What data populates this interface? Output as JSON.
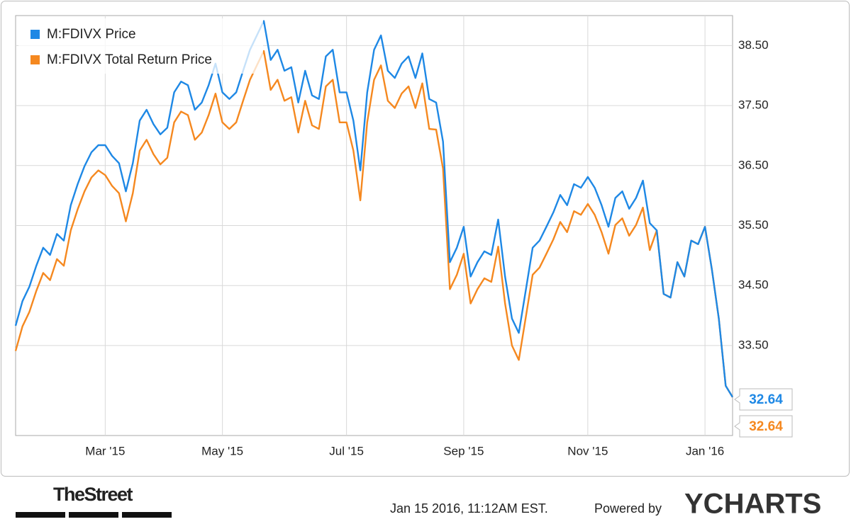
{
  "chart_data": {
    "type": "line",
    "categories": [
      null,
      null,
      null,
      null,
      null,
      null,
      null,
      null,
      null,
      null,
      null,
      null,
      null,
      "Mar '15",
      null,
      null,
      null,
      null,
      null,
      null,
      null,
      null,
      null,
      null,
      null,
      null,
      null,
      null,
      null,
      null,
      "May '15",
      null,
      null,
      null,
      null,
      null,
      null,
      null,
      null,
      null,
      null,
      null,
      null,
      null,
      null,
      null,
      null,
      null,
      "Jul '15",
      null,
      null,
      null,
      null,
      null,
      null,
      null,
      null,
      null,
      null,
      null,
      null,
      null,
      null,
      null,
      null,
      "Sep '15",
      null,
      null,
      null,
      null,
      null,
      null,
      null,
      null,
      null,
      null,
      null,
      null,
      null,
      null,
      null,
      null,
      null,
      "Nov '15",
      null,
      null,
      null,
      null,
      null,
      null,
      null,
      null,
      null,
      null,
      null,
      null,
      null,
      null,
      null,
      null,
      "Jan '16",
      null,
      null,
      null,
      null
    ],
    "series": [
      {
        "name": "M:FDIVX Price",
        "color": "#1e88e5",
        "values": [
          33.83,
          34.24,
          34.48,
          34.83,
          35.13,
          35.01,
          35.36,
          35.25,
          35.84,
          36.19,
          36.49,
          36.72,
          36.84,
          36.84,
          36.66,
          36.54,
          36.07,
          36.54,
          37.25,
          37.43,
          37.19,
          37.02,
          37.13,
          37.72,
          37.9,
          37.84,
          37.43,
          37.55,
          37.84,
          38.2,
          37.72,
          37.61,
          37.72,
          38.08,
          38.43,
          38.67,
          38.91,
          38.26,
          38.43,
          38.08,
          38.14,
          37.55,
          38.08,
          37.67,
          37.61,
          38.32,
          38.43,
          37.72,
          37.72,
          37.25,
          36.42,
          37.72,
          38.43,
          38.67,
          38.08,
          37.96,
          38.2,
          38.32,
          37.96,
          38.37,
          37.61,
          37.55,
          36.9,
          34.89,
          35.13,
          35.48,
          34.65,
          34.89,
          35.07,
          35.01,
          35.6,
          34.65,
          33.95,
          33.71,
          34.42,
          35.13,
          35.25,
          35.48,
          35.72,
          36.01,
          35.84,
          36.19,
          36.13,
          36.31,
          36.13,
          35.84,
          35.48,
          35.96,
          36.07,
          35.78,
          35.96,
          36.25,
          35.54,
          35.42,
          34.36,
          34.3,
          34.89,
          34.65,
          35.25,
          35.19,
          35.48,
          34.77,
          33.95,
          32.83,
          32.64
        ]
      },
      {
        "name": "M:FDIVX Total Return Price",
        "color": "#f5881f",
        "values": [
          33.41,
          33.82,
          34.06,
          34.41,
          34.71,
          34.59,
          34.94,
          34.83,
          35.42,
          35.77,
          36.07,
          36.3,
          36.42,
          36.34,
          36.16,
          36.04,
          35.57,
          36.04,
          36.75,
          36.93,
          36.69,
          36.52,
          36.63,
          37.22,
          37.4,
          37.34,
          36.93,
          37.05,
          37.34,
          37.7,
          37.22,
          37.11,
          37.22,
          37.58,
          37.93,
          38.17,
          38.41,
          37.76,
          37.93,
          37.58,
          37.64,
          37.05,
          37.58,
          37.17,
          37.11,
          37.82,
          37.93,
          37.22,
          37.22,
          36.75,
          35.92,
          37.22,
          37.93,
          38.17,
          37.58,
          37.46,
          37.7,
          37.82,
          37.46,
          37.87,
          37.11,
          37.1,
          36.45,
          34.44,
          34.68,
          35.03,
          34.2,
          34.44,
          34.62,
          34.56,
          35.15,
          34.2,
          33.5,
          33.26,
          33.97,
          34.68,
          34.8,
          35.03,
          35.27,
          35.56,
          35.39,
          35.74,
          35.68,
          35.86,
          35.68,
          35.39,
          35.03,
          35.51,
          35.62,
          35.33,
          35.51,
          35.8,
          35.09,
          35.42,
          34.36,
          34.3,
          34.89,
          34.65,
          35.25,
          35.19,
          35.48,
          34.77,
          33.95,
          32.83,
          32.64
        ]
      }
    ],
    "ylim": [
      32,
      39
    ],
    "yticks": [
      {
        "value": 33.5,
        "label": "33.50"
      },
      {
        "value": 34.5,
        "label": "34.50"
      },
      {
        "value": 35.5,
        "label": "35.50"
      },
      {
        "value": 36.5,
        "label": "36.50"
      },
      {
        "value": 37.5,
        "label": "37.50"
      },
      {
        "value": 38.5,
        "label": "38.50"
      }
    ],
    "grid": true,
    "legend": "top-left",
    "source_logo": "TheStreet",
    "timestamp": "Jan 15 2016, 11:12AM EST.",
    "powered_by": "Powered by",
    "brand": "YCHARTS"
  }
}
